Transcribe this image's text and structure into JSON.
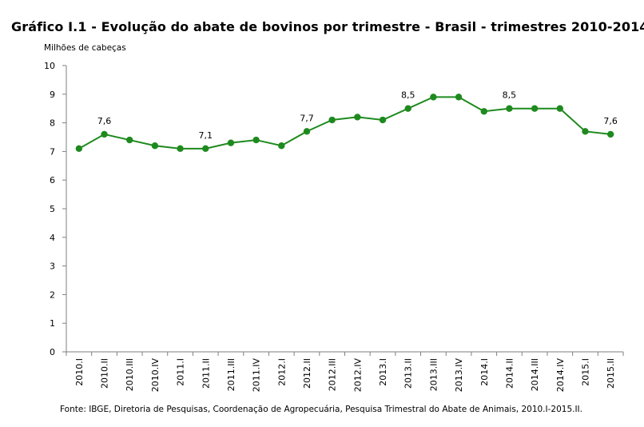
{
  "chart_data": {
    "type": "line",
    "title": "Gráfico I.1 - Evolução do abate de bovinos por trimestre - Brasil - trimestres 2010-2014",
    "ylabel": "Milhões de cabeças",
    "xlabel": "",
    "ylim": [
      0,
      10
    ],
    "yticks": [
      0,
      1,
      2,
      3,
      4,
      5,
      6,
      7,
      8,
      9,
      10
    ],
    "grid": false,
    "legend": "none",
    "categories": [
      "2010.I",
      "2010.II",
      "2010.III",
      "2010.IV",
      "2011.I",
      "2011.II",
      "2011.III",
      "2011.IV",
      "2012.I",
      "2012.II",
      "2012.III",
      "2012.IV",
      "2013.I",
      "2013.II",
      "2013.III",
      "2013.IV",
      "2014.I",
      "2014.II",
      "2014.III",
      "2014.IV",
      "2015.I",
      "2015.II"
    ],
    "series": [
      {
        "values": [
          7.1,
          7.6,
          7.4,
          7.2,
          7.1,
          7.1,
          7.3,
          7.4,
          7.2,
          7.7,
          8.1,
          8.2,
          8.1,
          8.5,
          8.9,
          8.9,
          8.4,
          8.5,
          8.5,
          8.5,
          7.7,
          7.6
        ],
        "color": "#1e8a1e"
      }
    ],
    "data_labels": [
      {
        "category": "2010.II",
        "text": "7,6"
      },
      {
        "category": "2011.II",
        "text": "7,1"
      },
      {
        "category": "2012.II",
        "text": "7,7"
      },
      {
        "category": "2013.II",
        "text": "8,5"
      },
      {
        "category": "2014.II",
        "text": "8,5"
      },
      {
        "category": "2015.II",
        "text": "7,6"
      }
    ],
    "source": "Fonte: IBGE, Diretoria de Pesquisas, Coordenação de Agropecuária, Pesquisa Trimestral do Abate de Animais, 2010.I-2015.II."
  }
}
